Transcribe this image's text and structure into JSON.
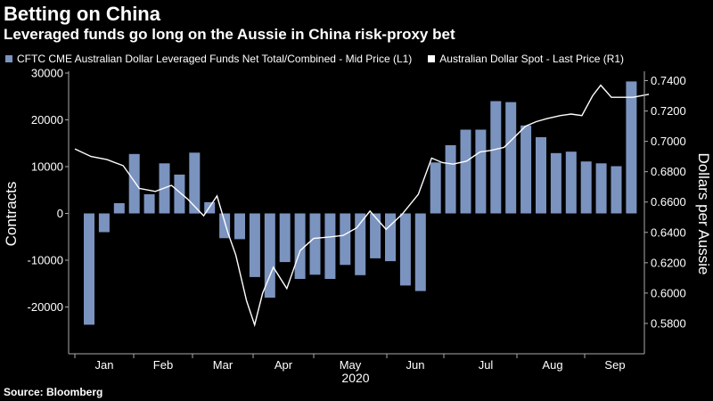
{
  "header": {
    "title": "Betting on China",
    "subtitle": "Leveraged funds go long on the Aussie in China risk-proxy bet"
  },
  "source": "Source: Bloomberg",
  "colors": {
    "background": "#000000",
    "bars": "#7b93bf",
    "line": "#ffffff",
    "text": "#ffffff",
    "axis": "#aaaaaa"
  },
  "chart_data": {
    "type": "bar",
    "xlabel": "2020",
    "legend_placement": "top-left",
    "grid": false,
    "x_ticks": [
      "Jan",
      "Feb",
      "Mar",
      "Apr",
      "May",
      "Jun",
      "Jul",
      "Aug",
      "Sep"
    ],
    "y_left": {
      "label": "Contracts",
      "ylim": [
        -30000,
        30000
      ],
      "ticks": [
        "30000",
        "20000",
        "10000",
        "0",
        "-10000",
        "-20000"
      ]
    },
    "y_right": {
      "label": "Dollars per Aussie",
      "ylim": [
        0.56,
        0.745
      ],
      "ticks": [
        "0.7400",
        "0.7200",
        "0.7000",
        "0.6800",
        "0.6600",
        "0.6400",
        "0.6200",
        "0.6000",
        "0.5800"
      ]
    },
    "series": [
      {
        "name": "CFTC CME Australian Dollar Leveraged Funds Net Total/Combined - Mid Price (L1)",
        "type": "bar",
        "axis": "left",
        "values": [
          -23800,
          -4000,
          2200,
          12700,
          4100,
          10700,
          8300,
          13000,
          2400,
          -5300,
          -5500,
          -13600,
          -18000,
          -10400,
          -14000,
          -13100,
          -14000,
          -11000,
          -13200,
          -9600,
          -10200,
          -15400,
          -16600,
          10900,
          14600,
          17900,
          17900,
          24000,
          23800,
          18800,
          16300,
          12900,
          13200,
          11100,
          10700,
          10100,
          28200
        ]
      },
      {
        "name": "Australian Dollar Spot - Last Price (R1)",
        "type": "line",
        "axis": "right",
        "points": [
          {
            "x": 0.0,
            "y": 0.695
          },
          {
            "x": 0.03,
            "y": 0.69
          },
          {
            "x": 0.06,
            "y": 0.688
          },
          {
            "x": 0.09,
            "y": 0.684
          },
          {
            "x": 0.12,
            "y": 0.669
          },
          {
            "x": 0.15,
            "y": 0.667
          },
          {
            "x": 0.18,
            "y": 0.671
          },
          {
            "x": 0.21,
            "y": 0.662
          },
          {
            "x": 0.24,
            "y": 0.651
          },
          {
            "x": 0.265,
            "y": 0.664
          },
          {
            "x": 0.285,
            "y": 0.64
          },
          {
            "x": 0.3,
            "y": 0.625
          },
          {
            "x": 0.32,
            "y": 0.595
          },
          {
            "x": 0.335,
            "y": 0.579
          },
          {
            "x": 0.35,
            "y": 0.6
          },
          {
            "x": 0.37,
            "y": 0.617
          },
          {
            "x": 0.395,
            "y": 0.603
          },
          {
            "x": 0.42,
            "y": 0.628
          },
          {
            "x": 0.445,
            "y": 0.636
          },
          {
            "x": 0.475,
            "y": 0.637
          },
          {
            "x": 0.5,
            "y": 0.638
          },
          {
            "x": 0.525,
            "y": 0.643
          },
          {
            "x": 0.55,
            "y": 0.654
          },
          {
            "x": 0.58,
            "y": 0.642
          },
          {
            "x": 0.61,
            "y": 0.652
          },
          {
            "x": 0.64,
            "y": 0.665
          },
          {
            "x": 0.665,
            "y": 0.689
          },
          {
            "x": 0.685,
            "y": 0.686
          },
          {
            "x": 0.705,
            "y": 0.685
          },
          {
            "x": 0.73,
            "y": 0.687
          },
          {
            "x": 0.755,
            "y": 0.693
          },
          {
            "x": 0.775,
            "y": 0.694
          },
          {
            "x": 0.8,
            "y": 0.696
          },
          {
            "x": 0.82,
            "y": 0.703
          },
          {
            "x": 0.84,
            "y": 0.71
          },
          {
            "x": 0.86,
            "y": 0.713
          },
          {
            "x": 0.88,
            "y": 0.715
          },
          {
            "x": 0.905,
            "y": 0.717
          },
          {
            "x": 0.925,
            "y": 0.718
          },
          {
            "x": 0.945,
            "y": 0.717
          },
          {
            "x": 0.965,
            "y": 0.73
          },
          {
            "x": 0.98,
            "y": 0.737
          },
          {
            "x": 0.99,
            "y": 0.733
          },
          {
            "x": 1.0,
            "y": 0.729
          },
          {
            "x": 1.04,
            "y": 0.729
          },
          {
            "x": 1.07,
            "y": 0.731
          }
        ]
      }
    ]
  }
}
